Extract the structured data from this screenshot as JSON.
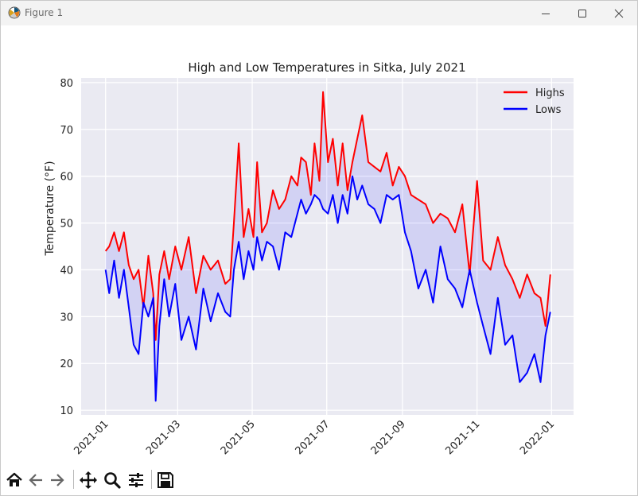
{
  "window": {
    "title": "Figure 1",
    "app_icon": "matplotlib-icon",
    "controls": [
      "minimize-icon",
      "maximize-icon",
      "close-icon"
    ]
  },
  "toolbar": {
    "buttons": [
      "home-icon",
      "back-arrow-icon",
      "forward-arrow-icon",
      "pan-move-icon",
      "zoom-magnifier-icon",
      "configure-subplots-icon",
      "save-floppy-icon"
    ]
  },
  "chart_data": {
    "type": "line",
    "title": "High and Low Temperatures in Sitka, July 2021",
    "xlabel": "",
    "ylabel": "Temperature (°F)",
    "xlim": [
      "2020-12-12",
      "2022-01-19"
    ],
    "ylim": [
      9,
      81
    ],
    "xticks": [
      "2021-01",
      "2021-03",
      "2021-05",
      "2021-07",
      "2021-09",
      "2021-11",
      "2022-01"
    ],
    "yticks": [
      10,
      20,
      30,
      40,
      50,
      60,
      70,
      80
    ],
    "grid": true,
    "legend": "top-right",
    "fill_between": {
      "color": "#0000ff",
      "alpha": 0.1
    },
    "series": [
      {
        "name": "Highs",
        "color": "#ff0000",
        "x": [
          "2021-01-01",
          "2021-01-04",
          "2021-01-08",
          "2021-01-12",
          "2021-01-16",
          "2021-01-20",
          "2021-01-24",
          "2021-01-28",
          "2021-02-01",
          "2021-02-05",
          "2021-02-09",
          "2021-02-11",
          "2021-02-14",
          "2021-02-18",
          "2021-02-22",
          "2021-02-27",
          "2021-03-04",
          "2021-03-10",
          "2021-03-16",
          "2021-03-22",
          "2021-03-28",
          "2021-04-03",
          "2021-04-09",
          "2021-04-13",
          "2021-04-16",
          "2021-04-20",
          "2021-04-24",
          "2021-04-28",
          "2021-05-02",
          "2021-05-05",
          "2021-05-09",
          "2021-05-13",
          "2021-05-18",
          "2021-05-23",
          "2021-05-28",
          "2021-06-02",
          "2021-06-07",
          "2021-06-10",
          "2021-06-14",
          "2021-06-18",
          "2021-06-21",
          "2021-06-25",
          "2021-06-28",
          "2021-07-02",
          "2021-07-06",
          "2021-07-10",
          "2021-07-14",
          "2021-07-18",
          "2021-07-22",
          "2021-07-26",
          "2021-07-30",
          "2021-08-04",
          "2021-08-09",
          "2021-08-14",
          "2021-08-19",
          "2021-08-24",
          "2021-08-29",
          "2021-09-03",
          "2021-09-08",
          "2021-09-14",
          "2021-09-20",
          "2021-09-26",
          "2021-10-02",
          "2021-10-08",
          "2021-10-14",
          "2021-10-20",
          "2021-10-26",
          "2021-11-01",
          "2021-11-06",
          "2021-11-12",
          "2021-11-18",
          "2021-11-24",
          "2021-11-30",
          "2021-12-06",
          "2021-12-12",
          "2021-12-18",
          "2021-12-23",
          "2021-12-27",
          "2021-12-31"
        ],
        "y": [
          44,
          45,
          48,
          44,
          48,
          41,
          38,
          40,
          32,
          43,
          35,
          25,
          39,
          44,
          38,
          45,
          40,
          47,
          35,
          43,
          40,
          42,
          37,
          38,
          50,
          67,
          47,
          53,
          47,
          63,
          48,
          50,
          57,
          53,
          55,
          60,
          58,
          64,
          63,
          56,
          67,
          59,
          78,
          63,
          68,
          58,
          67,
          57,
          63,
          68,
          73,
          63,
          62,
          61,
          65,
          58,
          62,
          60,
          56,
          55,
          54,
          50,
          52,
          51,
          48,
          54,
          39,
          59,
          42,
          40,
          47,
          41,
          38,
          34,
          39,
          35,
          34,
          28,
          39
        ]
      },
      {
        "name": "Lows",
        "color": "#0000ff",
        "x": [
          "2021-01-01",
          "2021-01-04",
          "2021-01-08",
          "2021-01-12",
          "2021-01-16",
          "2021-01-20",
          "2021-01-24",
          "2021-01-28",
          "2021-02-01",
          "2021-02-05",
          "2021-02-09",
          "2021-02-11",
          "2021-02-14",
          "2021-02-18",
          "2021-02-22",
          "2021-02-27",
          "2021-03-04",
          "2021-03-10",
          "2021-03-16",
          "2021-03-22",
          "2021-03-28",
          "2021-04-03",
          "2021-04-09",
          "2021-04-13",
          "2021-04-16",
          "2021-04-20",
          "2021-04-24",
          "2021-04-28",
          "2021-05-02",
          "2021-05-05",
          "2021-05-09",
          "2021-05-13",
          "2021-05-18",
          "2021-05-23",
          "2021-05-28",
          "2021-06-02",
          "2021-06-07",
          "2021-06-10",
          "2021-06-14",
          "2021-06-18",
          "2021-06-21",
          "2021-06-25",
          "2021-06-28",
          "2021-07-02",
          "2021-07-06",
          "2021-07-10",
          "2021-07-14",
          "2021-07-18",
          "2021-07-22",
          "2021-07-26",
          "2021-07-30",
          "2021-08-04",
          "2021-08-09",
          "2021-08-14",
          "2021-08-19",
          "2021-08-24",
          "2021-08-29",
          "2021-09-03",
          "2021-09-08",
          "2021-09-14",
          "2021-09-20",
          "2021-09-26",
          "2021-10-02",
          "2021-10-08",
          "2021-10-14",
          "2021-10-20",
          "2021-10-26",
          "2021-11-01",
          "2021-11-06",
          "2021-11-12",
          "2021-11-18",
          "2021-11-24",
          "2021-11-30",
          "2021-12-06",
          "2021-12-12",
          "2021-12-18",
          "2021-12-23",
          "2021-12-27",
          "2021-12-31"
        ],
        "y": [
          40,
          35,
          42,
          34,
          40,
          32,
          24,
          22,
          33,
          30,
          34,
          12,
          28,
          38,
          30,
          37,
          25,
          30,
          23,
          36,
          29,
          35,
          31,
          30,
          40,
          46,
          38,
          44,
          40,
          47,
          42,
          46,
          45,
          40,
          48,
          47,
          52,
          55,
          52,
          54,
          56,
          55,
          53,
          52,
          56,
          50,
          56,
          52,
          60,
          55,
          58,
          54,
          53,
          50,
          56,
          55,
          56,
          48,
          44,
          36,
          40,
          33,
          45,
          38,
          36,
          32,
          40,
          33,
          28,
          22,
          34,
          24,
          26,
          16,
          18,
          22,
          16,
          26,
          31
        ]
      }
    ]
  }
}
